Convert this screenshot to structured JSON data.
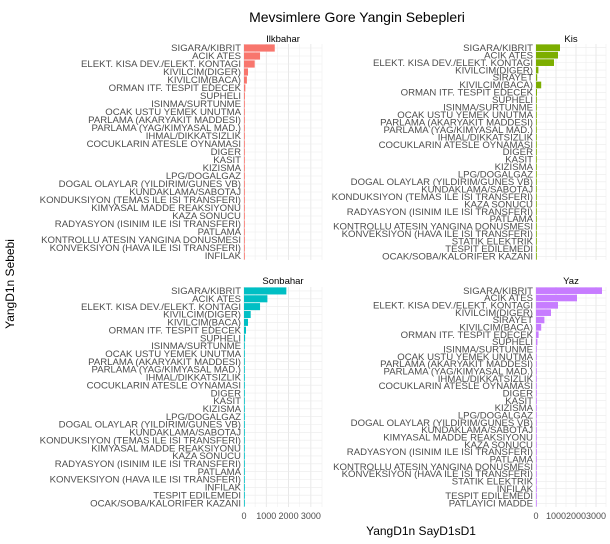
{
  "chart_data": {
    "type": "bar",
    "orientation": "horizontal",
    "title": "Mevsimlere Gore Yangin Sebepleri",
    "xlabel": "YangD1n SayD1sD1",
    "ylabel": "YangD1n Sebebi",
    "xlim": [
      0,
      3500
    ],
    "x_ticks": [
      0,
      1000,
      2000,
      3000
    ],
    "x_tick_labels": [
      "0",
      "1000",
      "2000",
      "3000"
    ],
    "grid": true,
    "legend": "none",
    "panels": [
      {
        "name": "Ilkbahar",
        "color": "#f8766d",
        "categories": [
          "SIGARA/KIBRIT",
          "ACIK ATES",
          "ELEKT. KISA DEV./ELEKT. KONTAGI",
          "KIVILCIM(DIGER)",
          "KIVILCIM(BACA)",
          "ORMAN ITF. TESPIT EDECEK",
          "SUPHELI",
          "ISINMA/SURTUNME",
          "OCAK USTU YEMEK UNUTMA",
          "PARLAMA (AKARYAKIT MADDESI)",
          "PARLAMA (YAG/KIMYASAL MAD.)",
          "IHMAL/DIKKATSIZLIK",
          "COCUKLARIN ATESLE OYNAMASI",
          "DIGER",
          "KASIT",
          "KIZISMA",
          "LPG/DOGALGAZ",
          "DOGAL OLAYLAR (YILDIRIM/GUNES VB)",
          "KUNDAKLAMA/SABOTAJ",
          "KONDUKSIYON (TEMAS ILE ISI TRANSFERI)",
          "KIMYASAL MADDE REAKSIYONU",
          "KAZA SONUCU",
          "RADYASYON (ISINIM ILE ISI TRANSFERI)",
          "PATLAMA",
          "KONTROLLU ATESIN YANGINA DONUSMESI",
          "KONVEKSIYON (HAVA ILE ISI TRANSFERI)",
          "INFILAK"
        ],
        "values": [
          1380,
          720,
          480,
          180,
          130,
          60,
          40,
          30,
          25,
          22,
          20,
          18,
          16,
          14,
          12,
          10,
          9,
          8,
          7,
          6,
          5,
          5,
          4,
          3,
          3,
          2,
          2
        ]
      },
      {
        "name": "Kis",
        "color": "#7cae00",
        "categories": [
          "SIGARA/KIBRIT",
          "ACIK ATES",
          "ELEKT. KISA DEV./ELEKT. KONTAGI",
          "KIVILCIM(DIGER)",
          "SIRAYET",
          "KIVILCIM(BACA)",
          "ORMAN ITF. TESPIT EDECEK",
          "SUPHELI",
          "ISINMA/SURTUNME",
          "OCAK USTU YEMEK UNUTMA",
          "PARLAMA (AKARYAKIT MADDESI)",
          "PARLAMA (YAG/KIMYASAL MAD.)",
          "IHMAL/DIKKATSIZLIK",
          "COCUKLARIN ATESLE OYNAMASI",
          "DIGER",
          "KASIT",
          "KIZISMA",
          "LPG/DOGALGAZ",
          "DOGAL OLAYLAR (YILDIRIM/GUNES VB)",
          "KUNDAKLAMA/SABOTAJ",
          "KONDUKSIYON (TEMAS ILE ISI TRANSFERI)",
          "KAZA SONUCU",
          "RADYASYON (ISINIM ILE ISI TRANSFERI)",
          "PATLAMA",
          "KONTROLLU ATESIN YANGINA DONUSMESI",
          "KONVEKSIYON (HAVA ILE ISI TRANSFERI)",
          "STATIK ELEKTRIK",
          "TESPIT EDILEMEDI",
          "OCAK/SOBA/KALORIFER KAZANI"
        ],
        "values": [
          1200,
          1100,
          900,
          120,
          60,
          260,
          50,
          40,
          30,
          25,
          22,
          20,
          18,
          16,
          14,
          12,
          10,
          9,
          8,
          7,
          6,
          5,
          4,
          3,
          3,
          2,
          2,
          2,
          2
        ]
      },
      {
        "name": "Sonbahar",
        "color": "#00bfc4",
        "categories": [
          "SIGARA/KIBRIT",
          "ACIK ATES",
          "ELEKT. KISA DEV./ELEKT. KONTAGI",
          "KIVILCIM(DIGER)",
          "KIVILCIM(BACA)",
          "ORMAN ITF. TESPIT EDECEK",
          "SUPHELI",
          "ISINMA/SURTUNME",
          "OCAK USTU YEMEK UNUTMA",
          "PARLAMA (AKARYAKIT MADDESI)",
          "PARLAMA (YAG/KIMYASAL MAD.)",
          "IHMAL/DIKKATSIZLIK",
          "COCUKLARIN ATESLE OYNAMASI",
          "DIGER",
          "KASIT",
          "KIZISMA",
          "LPG/DOGALGAZ",
          "DOGAL OLAYLAR (YILDIRIM/GUNES VB)",
          "KUNDAKLAMA/SABOTAJ",
          "KONDUKSIYON (TEMAS ILE ISI TRANSFERI)",
          "KIMYASAL MADDE REAKSIYONU",
          "KAZA SONUCU",
          "RADYASYON (ISINIM ILE ISI TRANSFERI)",
          "PATLAMA",
          "KONVEKSIYON (HAVA ILE ISI TRANSFERI)",
          "INFILAK",
          "TESPIT EDILEMEDI",
          "OCAK/SOBA/KALORIFER KAZANI"
        ],
        "values": [
          1900,
          1050,
          720,
          300,
          180,
          90,
          50,
          30,
          25,
          22,
          20,
          18,
          16,
          14,
          12,
          10,
          9,
          8,
          7,
          6,
          5,
          5,
          4,
          3,
          2,
          2,
          2,
          2
        ]
      },
      {
        "name": "Yaz",
        "color": "#c77cff",
        "categories": [
          "SIGARA/KIBRIT",
          "ACIK ATES",
          "ELEKT. KISA DEV./ELEKT. KONTAGI",
          "KIVILCIM(DIGER)",
          "SIRAYET",
          "KIVILCIM(BACA)",
          "ORMAN ITF. TESPIT EDECEK",
          "SUPHELI",
          "ISINMA/SURTUNME",
          "OCAK USTU YEMEK UNUTMA",
          "PARLAMA (AKARYAKIT MADDESI)",
          "PARLAMA (YAG/KIMYASAL MAD.)",
          "IHMAL/DIKKATSIZLIK",
          "COCUKLARIN ATESLE OYNAMASI",
          "DIGER",
          "KASIT",
          "KIZISMA",
          "LPG/DOGALGAZ",
          "DOGAL OLAYLAR (YILDIRIM/GUNES VB)",
          "KUNDAKLAMA/SABOTAJ",
          "KIMYASAL MADDE REAKSIYONU",
          "KAZA SONUCU",
          "RADYASYON (ISINIM ILE ISI TRANSFERI)",
          "PATLAMA",
          "KONTROLLU ATESIN YANGINA DONUSMESI",
          "KONVEKSIYON (HAVA ILE ISI TRANSFERI)",
          "STATIK ELEKTRIK",
          "INFILAK",
          "TESPIT EDILEMEDI",
          "PATLAYICI MADDE"
        ],
        "values": [
          3300,
          2050,
          1100,
          750,
          420,
          260,
          130,
          70,
          40,
          30,
          25,
          22,
          20,
          18,
          16,
          14,
          12,
          10,
          9,
          8,
          7,
          6,
          5,
          4,
          3,
          3,
          2,
          2,
          2,
          2
        ]
      }
    ]
  }
}
